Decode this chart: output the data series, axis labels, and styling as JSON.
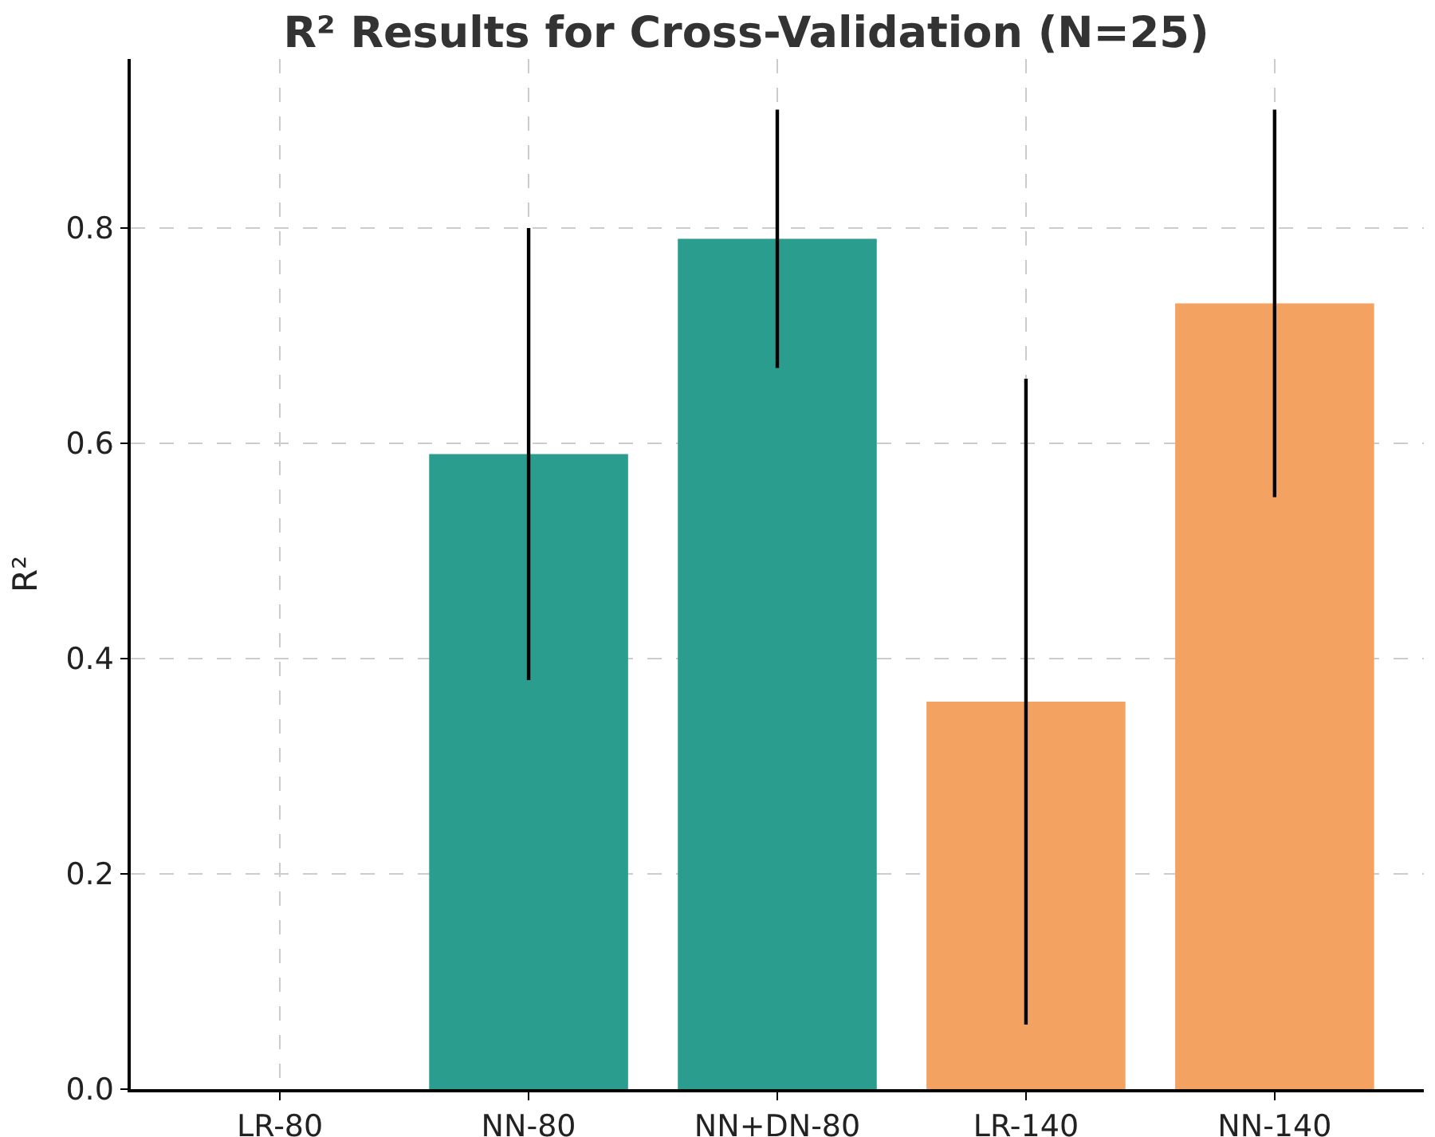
{
  "chart_data": {
    "type": "bar",
    "title": "R² Results for Cross-Validation (N=25)",
    "ylabel": "R²",
    "categories": [
      "LR-80",
      "NN-80",
      "NN+DN-80",
      "LR-140",
      "NN-140"
    ],
    "values": [
      null,
      0.59,
      0.79,
      0.36,
      0.73
    ],
    "colors": [
      "#2a9d8f",
      "#2a9d8f",
      "#2a9d8f",
      "#f4a261",
      "#f4a261"
    ],
    "errors": [
      null,
      [
        0.38,
        0.8
      ],
      [
        0.67,
        0.91
      ],
      [
        0.06,
        0.66
      ],
      [
        0.55,
        0.91
      ]
    ],
    "ylim": [
      0,
      0.957
    ],
    "yticks": [
      {
        "value": 0,
        "label": "0.0"
      },
      {
        "value": 0.2,
        "label": "0.2"
      },
      {
        "value": 0.4,
        "label": "0.4"
      },
      {
        "value": 0.6,
        "label": "0.6"
      },
      {
        "value": 0.8,
        "label": "0.8"
      }
    ],
    "grid": true
  }
}
